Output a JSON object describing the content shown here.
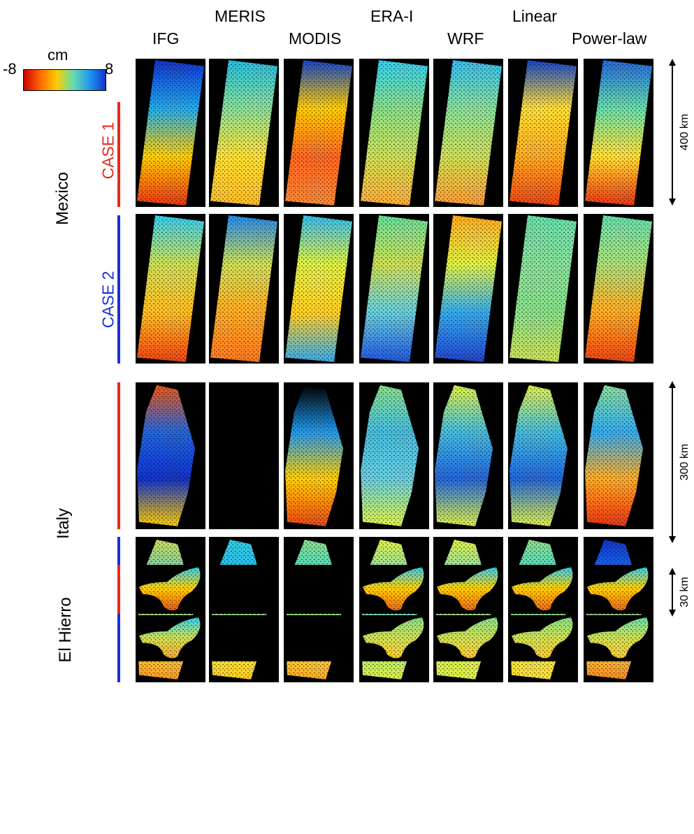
{
  "columns": {
    "ifg": "IFG",
    "meris": "MERIS",
    "modis": "MODIS",
    "erai": "ERA-I",
    "wrf": "WRF",
    "linear": "Linear",
    "powerlaw": "Power-law"
  },
  "colorbar": {
    "unit": "cm",
    "min": "-8",
    "max": "8",
    "colors": [
      "#cc0000",
      "#ff6600",
      "#ffcc00",
      "#66ddaa",
      "#2299ee",
      "#1133cc"
    ]
  },
  "rows": {
    "mexico": {
      "site": "Mexico",
      "case1": "CASE 1",
      "case2": "CASE 2",
      "scale": "400 km"
    },
    "italy": {
      "site": "Italy",
      "scale": "300 km"
    },
    "elhierro": {
      "site": "El Hierro",
      "scale": "30 km"
    }
  },
  "case_colors": {
    "case1": "#e8271e",
    "case2": "#1a2fd6"
  }
}
